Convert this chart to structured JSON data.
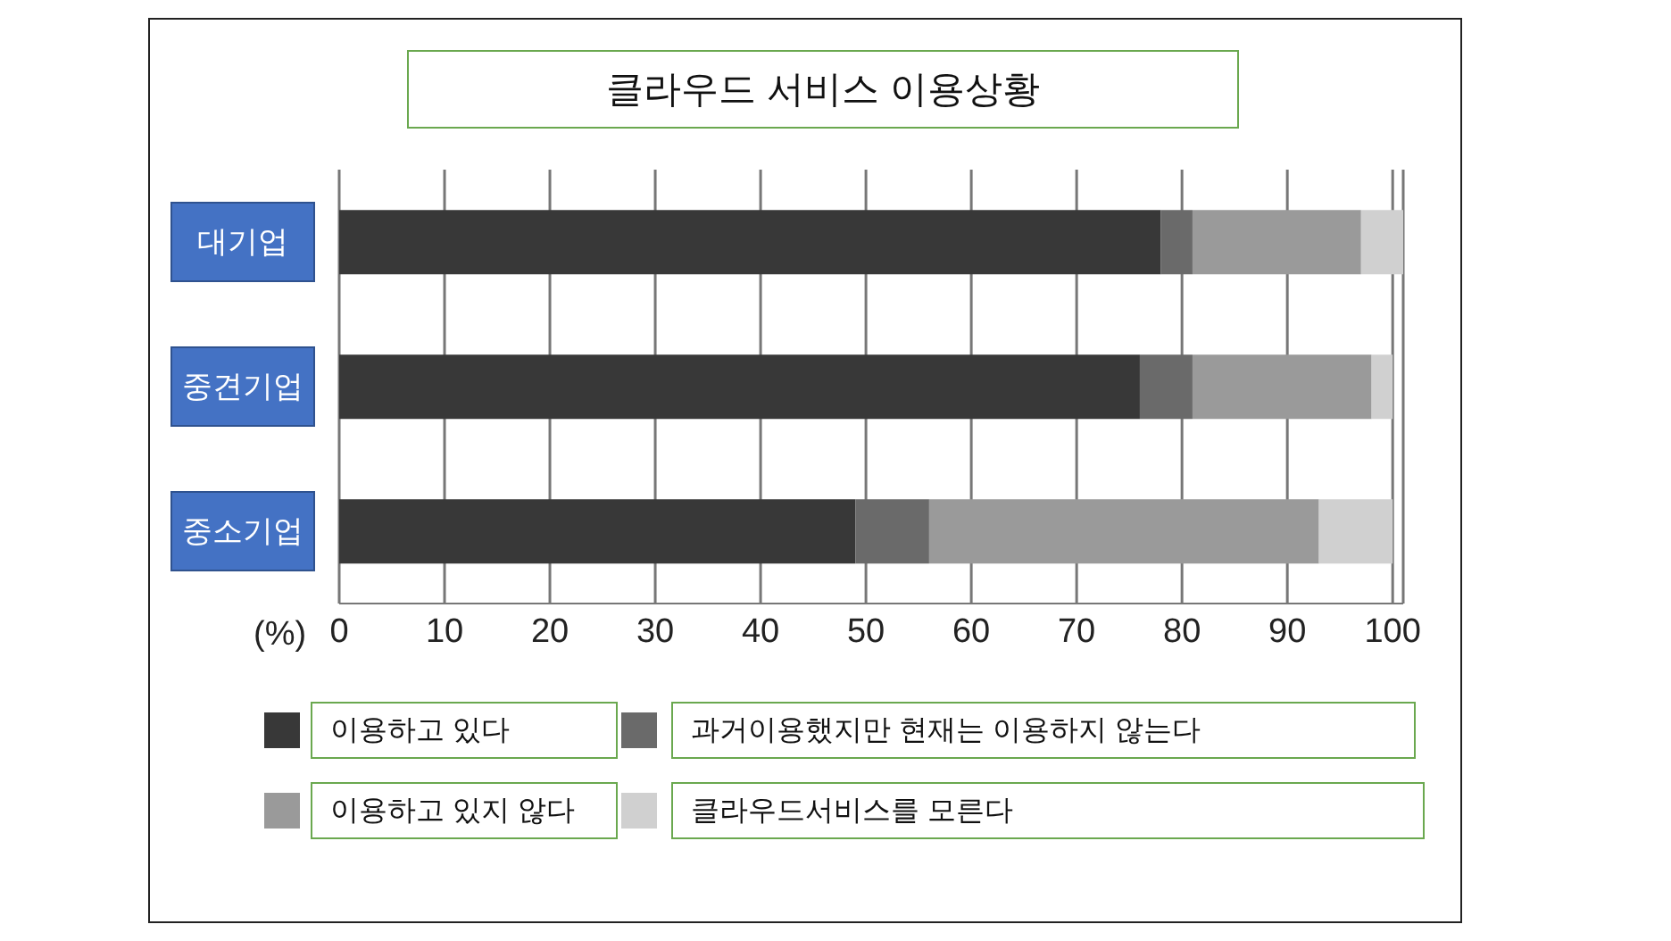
{
  "chart_data": {
    "type": "bar",
    "title": "클라우드 서비스 이용상황",
    "orientation": "horizontal",
    "stacked": true,
    "categories": [
      "대기업",
      "중견기업",
      "중소기업"
    ],
    "series": [
      {
        "name": "이용하고 있다",
        "color": "#383838",
        "values": [
          78,
          76,
          49
        ]
      },
      {
        "name": "과거이용했지만 현재는 이용하지 않는다",
        "color": "#6a6a6a",
        "values": [
          3,
          5,
          7
        ]
      },
      {
        "name": "이용하고 있지 않다",
        "color": "#9a9a9a",
        "values": [
          16,
          17,
          37
        ]
      },
      {
        "name": "클라우드서비스를 모른다",
        "color": "#d0d0d0",
        "values": [
          4,
          2,
          7
        ]
      }
    ],
    "xlabel": "(%)",
    "xlim": [
      0,
      101
    ],
    "xticks": [
      0,
      10,
      20,
      30,
      40,
      50,
      60,
      70,
      80,
      90,
      100
    ],
    "grid": "x",
    "legend": "bottom"
  }
}
